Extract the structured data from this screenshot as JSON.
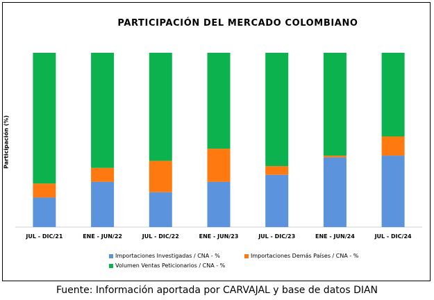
{
  "colors": {
    "investigadas": "#5b93dd",
    "demas": "#fe7a10",
    "peticionarios": "#0bb24d",
    "axis": "#d0d0d0"
  },
  "chart_data": {
    "type": "bar",
    "stacked": true,
    "title": "PARTICIPACIÓN DEL MERCADO COLOMBIANO",
    "ylabel": "Participación (%)",
    "xlabel": "",
    "ylim": [
      0,
      100
    ],
    "grid": false,
    "legend_position": "bottom",
    "categories": [
      "JUL - DIC/21",
      "ENE - JUN/22",
      "JUL - DIC/22",
      "ENE - JUN/23",
      "JUL - DIC/23",
      "ENE - JUN/24",
      "JUL - DIC/24"
    ],
    "series": [
      {
        "name": "Importaciones Investigadas  / CNA - %",
        "color_key": "investigadas",
        "values": [
          17,
          26,
          20,
          26,
          30,
          40,
          41
        ]
      },
      {
        "name": "Importaciones Demás Países / CNA - %",
        "color_key": "demas",
        "values": [
          8,
          8,
          18,
          19,
          5,
          1,
          11
        ]
      },
      {
        "name": "Volumen Ventas Peticionarios / CNA - %",
        "color_key": "peticionarios",
        "values": [
          75,
          66,
          62,
          55,
          65,
          59,
          48
        ]
      }
    ]
  },
  "footer": {
    "source": "Fuente: Información aportada por CARVAJAL y base de datos DIAN"
  }
}
